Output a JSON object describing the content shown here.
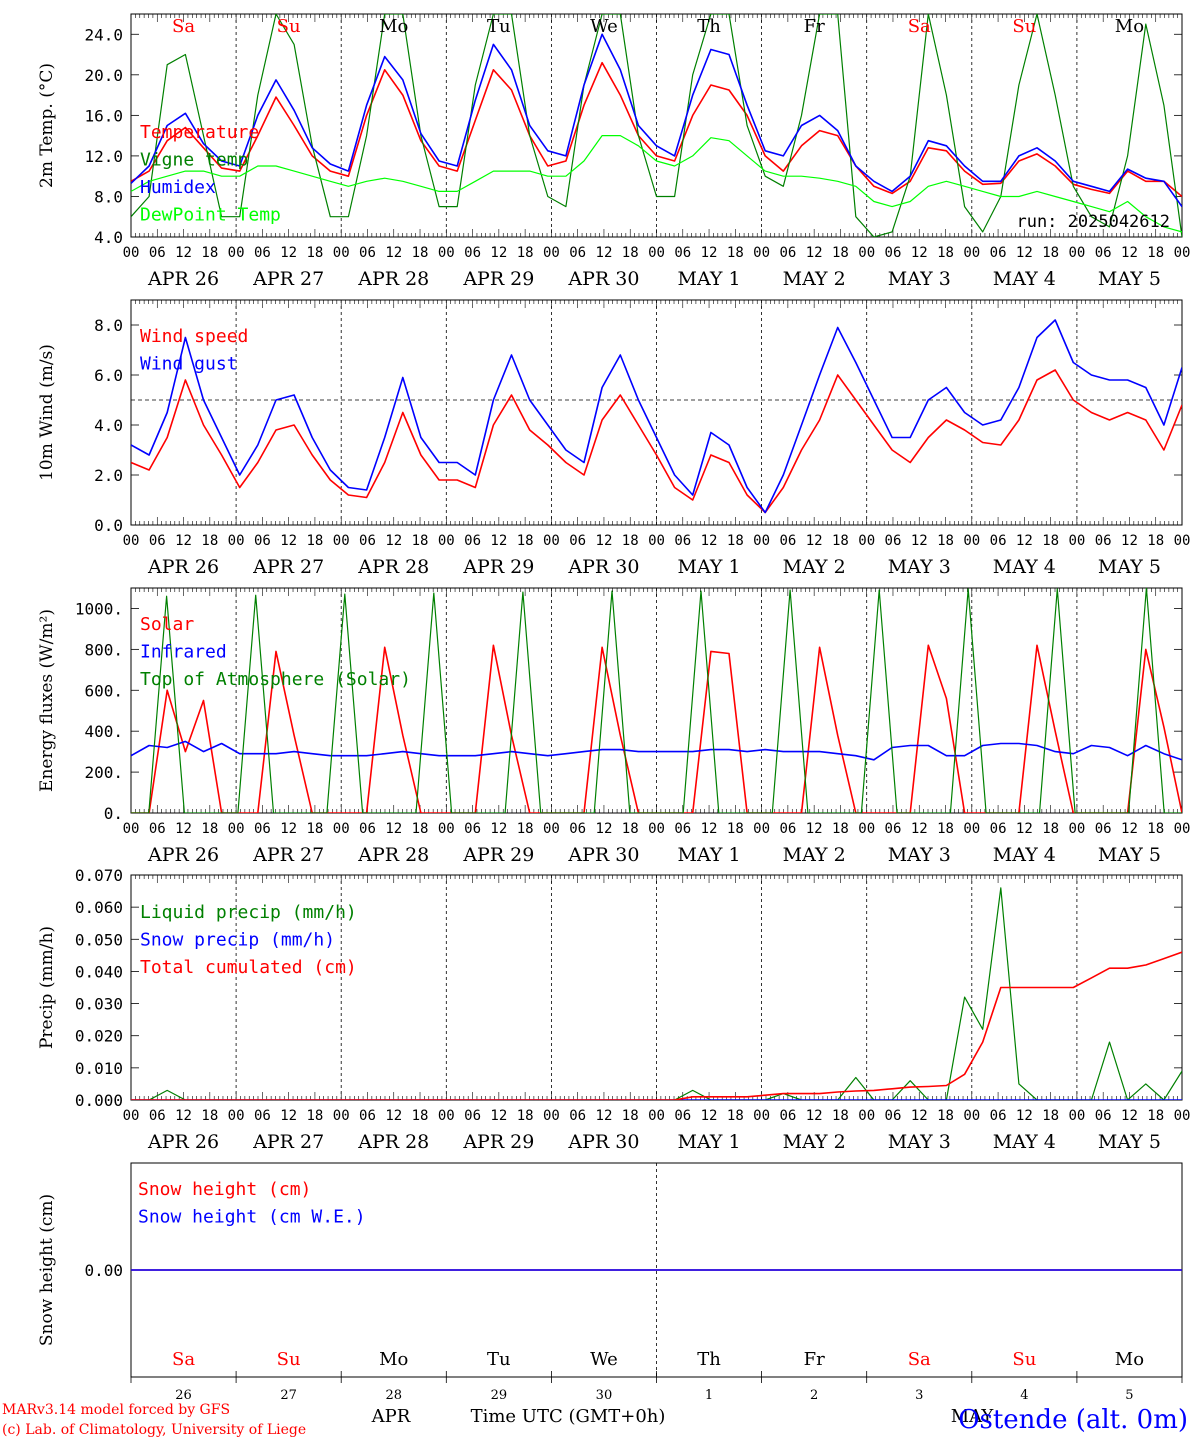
{
  "days": {
    "dates": [
      "APR 26",
      "APR 27",
      "APR 28",
      "APR 29",
      "APR 30",
      "MAY  1",
      "MAY  2",
      "MAY  3",
      "MAY  4",
      "MAY  5"
    ],
    "weekdays": [
      "Sa",
      "Su",
      "Mo",
      "Tu",
      "We",
      "Th",
      "Fr",
      "Sa",
      "Su",
      "Mo"
    ],
    "weekend_flags": [
      true,
      true,
      false,
      false,
      false,
      false,
      false,
      true,
      true,
      false
    ],
    "numbers": [
      "26",
      "27",
      "28",
      "29",
      "30",
      "1",
      "2",
      "3",
      "4",
      "5"
    ],
    "hour_ticks": [
      "00",
      "06",
      "12",
      "18"
    ],
    "final_hour": "00"
  },
  "colors": {
    "red": "#ff0000",
    "green": "#008000",
    "blue": "#0000ff",
    "lightgreen": "#00ff00",
    "black": "#000000",
    "weekend": "#ff0000"
  },
  "footer": {
    "model_line": "MARv3.14 model forced by GFS",
    "credit_line": "(c) Lab. of Climatology, University of Liege",
    "apr_label": "APR",
    "may_label": "MAY",
    "time_label": "Time UTC (GMT+0h)",
    "station": "Ostende (alt. 0m)"
  },
  "chart_data": [
    {
      "type": "line",
      "ylabel": "2m Temp. (°C)",
      "ylim": [
        4,
        26
      ],
      "yticks": [
        "4.0",
        "8.0",
        "12.0",
        "16.0",
        "20.0",
        "24.0"
      ],
      "legend": [
        "Temperature",
        "Vigne temp",
        "Humidex",
        "DewPoint Temp"
      ],
      "annotation": "run: 2025042612",
      "series": [
        {
          "name": "Temperature",
          "color": "red",
          "values": [
            9.5,
            10.5,
            13.5,
            14.8,
            12.8,
            10.8,
            10.5,
            14,
            17.8,
            15,
            12,
            10.5,
            10,
            16,
            20.5,
            18,
            13.5,
            11,
            10.5,
            15.5,
            20.5,
            18.5,
            14,
            11,
            11.5,
            17,
            21.2,
            18,
            14,
            12,
            11.5,
            16,
            19,
            18.5,
            16,
            12,
            10.5,
            13,
            14.5,
            14,
            11,
            9,
            8.3,
            9.5,
            12.8,
            12.5,
            10.5,
            9.2,
            9.3,
            11.5,
            12.2,
            11,
            9.2,
            8.7,
            8.3,
            10.5,
            9.5,
            9.5,
            8
          ]
        },
        {
          "name": "Vigne temp",
          "color": "green",
          "values": [
            6,
            8,
            21,
            22,
            14,
            6,
            6,
            18,
            26,
            23,
            13,
            6,
            6,
            14,
            26,
            26,
            14,
            7,
            7,
            19,
            26,
            26,
            14,
            8,
            7,
            19,
            26,
            26,
            14,
            8,
            8,
            20,
            26,
            26,
            15,
            10,
            9,
            16,
            26,
            26,
            6,
            4,
            4.5,
            10,
            26,
            18,
            7,
            4.5,
            8,
            19,
            26,
            18,
            9,
            6,
            5,
            12,
            25,
            17,
            4
          ]
        },
        {
          "name": "Humidex",
          "color": "blue",
          "values": [
            9.3,
            11,
            15,
            16.2,
            13.2,
            11.5,
            11,
            16,
            19.5,
            16.5,
            12.8,
            11.2,
            10.5,
            17,
            21.8,
            19.5,
            14.2,
            11.5,
            11,
            17.5,
            23,
            20.5,
            15,
            12.5,
            12,
            19,
            24,
            20.5,
            15,
            13,
            12,
            18,
            22.5,
            22,
            17,
            12.5,
            12,
            15,
            16,
            14.5,
            11,
            9.5,
            8.5,
            10,
            13.5,
            13,
            11,
            9.5,
            9.5,
            12,
            12.8,
            11.5,
            9.5,
            9,
            8.5,
            10.7,
            9.8,
            9.5,
            7
          ]
        },
        {
          "name": "DewPoint Temp",
          "color": "lightgreen",
          "values": [
            8.5,
            9.5,
            10,
            10.5,
            10.5,
            10,
            10,
            11,
            11,
            10.5,
            10,
            9.5,
            9,
            9.5,
            9.8,
            9.5,
            9,
            8.5,
            8.5,
            9.5,
            10.5,
            10.5,
            10.5,
            10,
            10,
            11.5,
            14,
            14,
            13,
            11.5,
            11,
            12,
            13.8,
            13.5,
            12,
            10.5,
            10,
            10,
            9.8,
            9.5,
            9,
            7.5,
            7,
            7.5,
            9,
            9.5,
            9,
            8.5,
            8,
            8,
            8.5,
            8,
            7.5,
            7,
            6.5,
            7.5,
            6,
            5,
            4.5
          ]
        }
      ]
    },
    {
      "type": "line",
      "ylabel": "10m Wind (m/s)",
      "ylim": [
        0,
        9
      ],
      "yticks": [
        "0.0",
        "2.0",
        "4.0",
        "6.0",
        "8.0"
      ],
      "legend": [
        "Wind speed",
        "Wind gust"
      ],
      "hline": 5.0,
      "series": [
        {
          "name": "Wind speed",
          "color": "red",
          "values": [
            2.5,
            2.2,
            3.5,
            5.8,
            4,
            2.8,
            1.5,
            2.5,
            3.8,
            4,
            2.8,
            1.8,
            1.2,
            1.1,
            2.5,
            4.5,
            2.8,
            1.8,
            1.8,
            1.5,
            4,
            5.2,
            3.8,
            3.2,
            2.5,
            2,
            4.2,
            5.2,
            4,
            2.8,
            1.5,
            1,
            2.8,
            2.5,
            1.2,
            0.5,
            1.5,
            3,
            4.2,
            6,
            5,
            4,
            3,
            2.5,
            3.5,
            4.2,
            3.8,
            3.3,
            3.2,
            4.2,
            5.8,
            6.2,
            5,
            4.5,
            4.2,
            4.5,
            4.2,
            3,
            4.8
          ]
        },
        {
          "name": "Wind gust",
          "color": "blue",
          "values": [
            3.2,
            2.8,
            4.5,
            7.5,
            5,
            3.5,
            2,
            3.2,
            5,
            5.2,
            3.5,
            2.2,
            1.5,
            1.4,
            3.5,
            5.9,
            3.5,
            2.5,
            2.5,
            2,
            5,
            6.8,
            5,
            4,
            3,
            2.5,
            5.5,
            6.8,
            5,
            3.5,
            2,
            1.2,
            3.7,
            3.2,
            1.5,
            0.5,
            2,
            4,
            6,
            7.9,
            6.5,
            5,
            3.5,
            3.5,
            5,
            5.5,
            4.5,
            4,
            4.2,
            5.5,
            7.5,
            8.2,
            6.5,
            6,
            5.8,
            5.8,
            5.5,
            4,
            6.3
          ]
        }
      ]
    },
    {
      "type": "line",
      "ylabel": "Energy fluxes (W/m²)",
      "ylim": [
        0,
        1100
      ],
      "yticks": [
        "0.",
        "200.",
        "400.",
        "600.",
        "800.",
        "1000."
      ],
      "legend": [
        "Solar",
        "Infrared",
        "Top of Atmosphere (Solar)"
      ],
      "series": [
        {
          "name": "Solar",
          "color": "red",
          "values": [
            0,
            0,
            600,
            300,
            550,
            0,
            0,
            0,
            790,
            380,
            0,
            0,
            0,
            0,
            810,
            380,
            0,
            0,
            0,
            0,
            820,
            380,
            0,
            0,
            0,
            0,
            810,
            380,
            0,
            0,
            0,
            0,
            790,
            780,
            0,
            0,
            0,
            0,
            810,
            380,
            0,
            0,
            0,
            0,
            820,
            560,
            0,
            0,
            0,
            0,
            820,
            400,
            0,
            0,
            0,
            0,
            800,
            420,
            0
          ]
        },
        {
          "name": "Infrared",
          "color": "blue",
          "values": [
            280,
            330,
            320,
            350,
            300,
            340,
            290,
            290,
            290,
            300,
            290,
            280,
            280,
            280,
            290,
            300,
            290,
            280,
            280,
            280,
            290,
            300,
            290,
            280,
            290,
            300,
            310,
            310,
            300,
            300,
            300,
            300,
            310,
            310,
            300,
            310,
            300,
            300,
            300,
            290,
            280,
            260,
            320,
            330,
            330,
            280,
            280,
            330,
            340,
            340,
            330,
            300,
            290,
            330,
            320,
            280,
            330,
            290,
            260
          ]
        },
        {
          "name": "Top of Atmosphere (Solar)",
          "color": "green",
          "values": [
            0,
            0,
            1060,
            0,
            0,
            0,
            0,
            1065,
            0,
            0,
            0,
            0,
            1070,
            0,
            0,
            0,
            0,
            1075,
            0,
            0,
            0,
            0,
            1080,
            0,
            0,
            0,
            0,
            1085,
            0,
            0,
            0,
            0,
            1085,
            0,
            0,
            0,
            0,
            1090,
            0,
            0,
            0,
            0,
            1090,
            0,
            0,
            0,
            0,
            1095,
            0,
            0,
            0,
            0,
            1095,
            0,
            0,
            0,
            0,
            1100,
            0,
            0
          ]
        }
      ]
    },
    {
      "type": "line",
      "ylabel": "Precip (mm/h)",
      "ylim": [
        0,
        0.07
      ],
      "yticks": [
        "0.000",
        "0.010",
        "0.020",
        "0.030",
        "0.040",
        "0.050",
        "0.060",
        "0.070"
      ],
      "legend": [
        "Liquid precip (mm/h)",
        "Snow precip (mm/h)",
        "Total cumulated (cm)"
      ],
      "series": [
        {
          "name": "Liquid precip (mm/h)",
          "color": "green",
          "values": [
            0,
            0,
            0.003,
            0,
            0,
            0,
            0,
            0,
            0,
            0,
            0,
            0,
            0,
            0,
            0,
            0,
            0,
            0,
            0,
            0,
            0,
            0,
            0,
            0,
            0,
            0,
            0,
            0,
            0,
            0,
            0,
            0.003,
            0,
            0,
            0,
            0,
            0.002,
            0,
            0,
            0,
            0.007,
            0,
            0,
            0.006,
            0,
            0,
            0.032,
            0.022,
            0.066,
            0.005,
            0,
            0,
            0,
            0,
            0.018,
            0,
            0.005,
            0,
            0.009
          ]
        },
        {
          "name": "Snow precip (mm/h)",
          "color": "blue",
          "values": [
            0,
            0,
            0,
            0,
            0,
            0,
            0,
            0,
            0,
            0,
            0,
            0,
            0,
            0,
            0,
            0,
            0,
            0,
            0,
            0,
            0,
            0,
            0,
            0,
            0,
            0,
            0,
            0,
            0,
            0,
            0,
            0,
            0,
            0,
            0,
            0,
            0,
            0,
            0,
            0,
            0,
            0,
            0,
            0,
            0,
            0,
            0,
            0,
            0,
            0,
            0,
            0,
            0,
            0,
            0,
            0,
            0,
            0,
            0
          ]
        },
        {
          "name": "Total cumulated (cm)",
          "color": "red",
          "values": [
            0,
            0,
            0,
            0,
            0,
            0,
            0,
            0,
            0,
            0,
            0,
            0,
            0,
            0,
            0,
            0,
            0,
            0,
            0,
            0,
            0,
            0,
            0,
            0,
            0,
            0,
            0,
            0,
            0,
            0,
            0,
            0.001,
            0.001,
            0.001,
            0.001,
            0.0015,
            0.002,
            0.002,
            0.002,
            0.0025,
            0.0028,
            0.003,
            0.0035,
            0.004,
            0.0042,
            0.0045,
            0.008,
            0.018,
            0.035,
            0.035,
            0.035,
            0.035,
            0.035,
            0.038,
            0.041,
            0.041,
            0.042,
            0.044,
            0.046
          ]
        }
      ]
    },
    {
      "type": "line",
      "ylabel": "Snow height (cm)",
      "ylim": [
        -1,
        1
      ],
      "yticks": [
        "0.00"
      ],
      "legend": [
        "Snow height (cm)",
        "Snow height (cm W.E.)"
      ],
      "series": [
        {
          "name": "Snow height (cm)",
          "color": "red",
          "values": [
            0,
            0
          ]
        },
        {
          "name": "Snow height (cm W.E.)",
          "color": "blue",
          "values": [
            0,
            0
          ]
        }
      ]
    }
  ]
}
